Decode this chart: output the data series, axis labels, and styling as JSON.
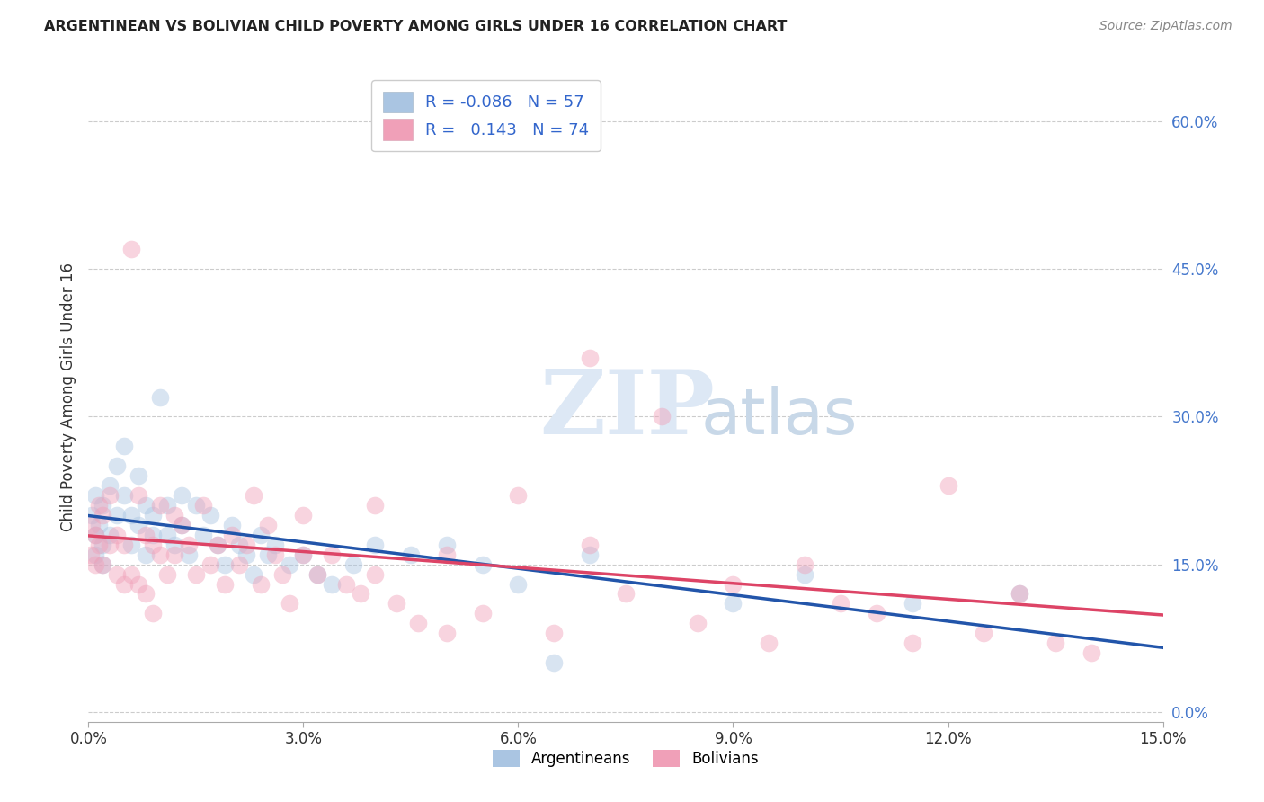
{
  "title": "ARGENTINEAN VS BOLIVIAN CHILD POVERTY AMONG GIRLS UNDER 16 CORRELATION CHART",
  "source": "Source: ZipAtlas.com",
  "ylabel": "Child Poverty Among Girls Under 16",
  "xlim": [
    0.0,
    0.15
  ],
  "ylim": [
    -0.01,
    0.65
  ],
  "xticks": [
    0.0,
    0.03,
    0.06,
    0.09,
    0.12,
    0.15
  ],
  "xticklabels": [
    "0.0%",
    "3.0%",
    "6.0%",
    "9.0%",
    "12.0%",
    "15.0%"
  ],
  "yticks_right": [
    0.0,
    0.15,
    0.3,
    0.45,
    0.6
  ],
  "yticklabels_right": [
    "0.0%",
    "15.0%",
    "30.0%",
    "45.0%",
    "60.0%"
  ],
  "grid_color": "#cccccc",
  "background_color": "#ffffff",
  "argentinean_color": "#aac5e2",
  "bolivian_color": "#f0a0b8",
  "argentinean_line_color": "#2255aa",
  "bolivian_line_color": "#dd4466",
  "legend_R_argentinean": "-0.086",
  "legend_N_argentinean": "57",
  "legend_R_bolivian": "0.143",
  "legend_N_bolivian": "74",
  "watermark_zip": "ZIP",
  "watermark_atlas": "atlas",
  "marker_size": 200,
  "marker_alpha": 0.45,
  "argentinean_x": [
    0.0005,
    0.001,
    0.001,
    0.001,
    0.0015,
    0.002,
    0.002,
    0.002,
    0.003,
    0.003,
    0.004,
    0.004,
    0.005,
    0.005,
    0.006,
    0.006,
    0.007,
    0.007,
    0.008,
    0.008,
    0.009,
    0.009,
    0.01,
    0.011,
    0.011,
    0.012,
    0.013,
    0.013,
    0.014,
    0.015,
    0.016,
    0.017,
    0.018,
    0.019,
    0.02,
    0.021,
    0.022,
    0.023,
    0.024,
    0.025,
    0.026,
    0.028,
    0.03,
    0.032,
    0.034,
    0.037,
    0.04,
    0.045,
    0.05,
    0.055,
    0.06,
    0.065,
    0.07,
    0.09,
    0.1,
    0.115,
    0.13
  ],
  "argentinean_y": [
    0.2,
    0.22,
    0.18,
    0.16,
    0.19,
    0.21,
    0.17,
    0.15,
    0.23,
    0.18,
    0.25,
    0.2,
    0.27,
    0.22,
    0.2,
    0.17,
    0.24,
    0.19,
    0.21,
    0.16,
    0.2,
    0.18,
    0.32,
    0.21,
    0.18,
    0.17,
    0.22,
    0.19,
    0.16,
    0.21,
    0.18,
    0.2,
    0.17,
    0.15,
    0.19,
    0.17,
    0.16,
    0.14,
    0.18,
    0.16,
    0.17,
    0.15,
    0.16,
    0.14,
    0.13,
    0.15,
    0.17,
    0.16,
    0.17,
    0.15,
    0.13,
    0.05,
    0.16,
    0.11,
    0.14,
    0.11,
    0.12
  ],
  "bolivian_x": [
    0.0003,
    0.0005,
    0.001,
    0.001,
    0.0015,
    0.0015,
    0.002,
    0.002,
    0.003,
    0.003,
    0.004,
    0.004,
    0.005,
    0.005,
    0.006,
    0.006,
    0.007,
    0.007,
    0.008,
    0.008,
    0.009,
    0.009,
    0.01,
    0.01,
    0.011,
    0.012,
    0.012,
    0.013,
    0.014,
    0.015,
    0.016,
    0.017,
    0.018,
    0.019,
    0.02,
    0.021,
    0.022,
    0.023,
    0.024,
    0.025,
    0.026,
    0.027,
    0.028,
    0.03,
    0.032,
    0.034,
    0.036,
    0.038,
    0.04,
    0.043,
    0.046,
    0.05,
    0.055,
    0.06,
    0.065,
    0.07,
    0.075,
    0.08,
    0.085,
    0.09,
    0.095,
    0.1,
    0.105,
    0.11,
    0.115,
    0.12,
    0.125,
    0.13,
    0.135,
    0.14,
    0.03,
    0.04,
    0.05,
    0.07
  ],
  "bolivian_y": [
    0.16,
    0.19,
    0.18,
    0.15,
    0.21,
    0.17,
    0.2,
    0.15,
    0.22,
    0.17,
    0.18,
    0.14,
    0.17,
    0.13,
    0.47,
    0.14,
    0.22,
    0.13,
    0.18,
    0.12,
    0.17,
    0.1,
    0.21,
    0.16,
    0.14,
    0.2,
    0.16,
    0.19,
    0.17,
    0.14,
    0.21,
    0.15,
    0.17,
    0.13,
    0.18,
    0.15,
    0.17,
    0.22,
    0.13,
    0.19,
    0.16,
    0.14,
    0.11,
    0.2,
    0.14,
    0.16,
    0.13,
    0.12,
    0.14,
    0.11,
    0.09,
    0.16,
    0.1,
    0.22,
    0.08,
    0.17,
    0.12,
    0.3,
    0.09,
    0.13,
    0.07,
    0.15,
    0.11,
    0.1,
    0.07,
    0.23,
    0.08,
    0.12,
    0.07,
    0.06,
    0.16,
    0.21,
    0.08,
    0.36
  ]
}
